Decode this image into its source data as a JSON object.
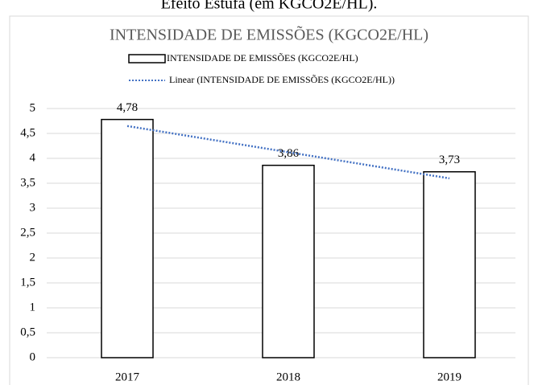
{
  "caption": "Efeito Estufa (em KGCO2E/HL).",
  "chart_data": {
    "type": "bar",
    "title": "INTENSIDADE DE EMISSÕES (KGCO2E/HL)",
    "categories": [
      "2017",
      "2018",
      "2019"
    ],
    "series": [
      {
        "name": "INTENSIDADE DE EMISSÕES (KGCO2E/HL)",
        "color": "#ffffff",
        "values": [
          4.78,
          3.86,
          3.73
        ],
        "value_labels": [
          "4,78",
          "3,86",
          "3,73"
        ]
      }
    ],
    "trendline": {
      "name": "Linear (INTENSIDADE DE EMISSÕES (KGCO2E/HL))",
      "color": "#4472c4"
    },
    "ylim": [
      0,
      5
    ],
    "yticks": [
      0,
      {
        "value": 0.5,
        "label": "0,5"
      },
      1,
      {
        "value": 1.5,
        "label": "1,5"
      },
      2,
      {
        "value": 2.5,
        "label": "2,5"
      },
      3,
      {
        "value": 3.5,
        "label": "3,5"
      },
      4,
      {
        "value": 4.5,
        "label": "4,5"
      },
      5
    ],
    "grid": true
  }
}
